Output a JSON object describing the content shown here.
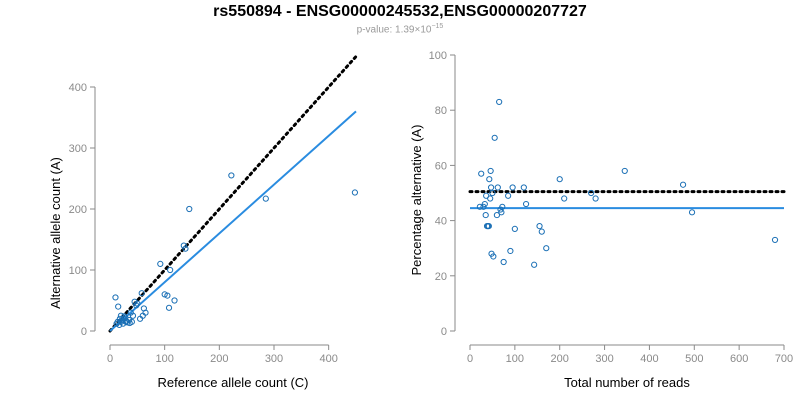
{
  "chart_data": {
    "title": "rs550894 - ENSG00000245532,ENSG00000207727",
    "subtitle": {
      "label": "p-value:",
      "mantissa": "1.39",
      "times": "×",
      "base": "10",
      "exponent": "−15"
    },
    "colors": {
      "points": "#1a6fb5",
      "fit_line": "#2a8ce0",
      "expected_line": "#000000",
      "axis": "#8a8a8a"
    },
    "panels": [
      {
        "type": "scatter",
        "xlabel": "Reference allele count (C)",
        "ylabel": "Alternative allele count (A)",
        "xlim": [
          0,
          450
        ],
        "ylim": [
          0,
          400
        ],
        "xticks": [
          0,
          100,
          200,
          300,
          400
        ],
        "yticks": [
          0,
          100,
          200,
          300,
          400
        ],
        "points": [
          [
            10,
            55
          ],
          [
            12,
            12
          ],
          [
            14,
            15
          ],
          [
            15,
            40
          ],
          [
            17,
            10
          ],
          [
            18,
            20
          ],
          [
            20,
            25
          ],
          [
            20,
            15
          ],
          [
            22,
            18
          ],
          [
            24,
            12
          ],
          [
            25,
            20
          ],
          [
            26,
            24
          ],
          [
            28,
            22
          ],
          [
            29,
            15
          ],
          [
            30,
            16
          ],
          [
            32,
            14
          ],
          [
            35,
            18
          ],
          [
            36,
            13
          ],
          [
            38,
            30
          ],
          [
            40,
            15
          ],
          [
            42,
            25
          ],
          [
            45,
            48
          ],
          [
            48,
            42
          ],
          [
            50,
            45
          ],
          [
            55,
            20
          ],
          [
            58,
            62
          ],
          [
            60,
            25
          ],
          [
            62,
            37
          ],
          [
            65,
            30
          ],
          [
            92,
            110
          ],
          [
            100,
            60
          ],
          [
            105,
            58
          ],
          [
            108,
            38
          ],
          [
            110,
            100
          ],
          [
            118,
            50
          ],
          [
            135,
            140
          ],
          [
            138,
            135
          ],
          [
            145,
            200
          ],
          [
            222,
            255
          ],
          [
            285,
            217
          ],
          [
            448,
            227
          ]
        ],
        "fit_line": {
          "x": [
            0,
            450
          ],
          "y": [
            0,
            360
          ]
        },
        "expected_line": {
          "x": [
            0,
            450
          ],
          "y": [
            0,
            450
          ]
        }
      },
      {
        "type": "scatter",
        "xlabel": "Total number of reads",
        "ylabel": "Percentage alternative (A)",
        "xlim": [
          0,
          700
        ],
        "ylim": [
          0,
          100
        ],
        "xticks": [
          0,
          100,
          200,
          300,
          400,
          500,
          600,
          700
        ],
        "yticks": [
          0,
          20,
          40,
          60,
          80,
          100
        ],
        "points": [
          [
            22,
            45
          ],
          [
            25,
            57
          ],
          [
            30,
            45
          ],
          [
            33,
            46
          ],
          [
            35,
            42
          ],
          [
            36,
            49
          ],
          [
            38,
            38
          ],
          [
            40,
            38
          ],
          [
            42,
            38
          ],
          [
            43,
            55
          ],
          [
            45,
            48
          ],
          [
            46,
            58
          ],
          [
            47,
            52
          ],
          [
            48,
            28
          ],
          [
            50,
            50
          ],
          [
            52,
            27
          ],
          [
            55,
            70
          ],
          [
            60,
            42
          ],
          [
            62,
            52
          ],
          [
            65,
            83
          ],
          [
            68,
            44
          ],
          [
            70,
            43
          ],
          [
            72,
            45
          ],
          [
            75,
            25
          ],
          [
            85,
            49
          ],
          [
            90,
            29
          ],
          [
            95,
            52
          ],
          [
            100,
            37
          ],
          [
            120,
            52
          ],
          [
            125,
            46
          ],
          [
            143,
            24
          ],
          [
            155,
            38
          ],
          [
            160,
            36
          ],
          [
            170,
            30
          ],
          [
            200,
            55
          ],
          [
            210,
            48
          ],
          [
            270,
            50
          ],
          [
            280,
            48
          ],
          [
            345,
            58
          ],
          [
            475,
            53
          ],
          [
            495,
            43
          ],
          [
            680,
            33
          ]
        ],
        "fit_line": {
          "x": [
            0,
            700
          ],
          "y": [
            44.5,
            44.5
          ]
        },
        "expected_line": {
          "x": [
            0,
            700
          ],
          "y": [
            50.5,
            50.5
          ]
        }
      }
    ]
  }
}
